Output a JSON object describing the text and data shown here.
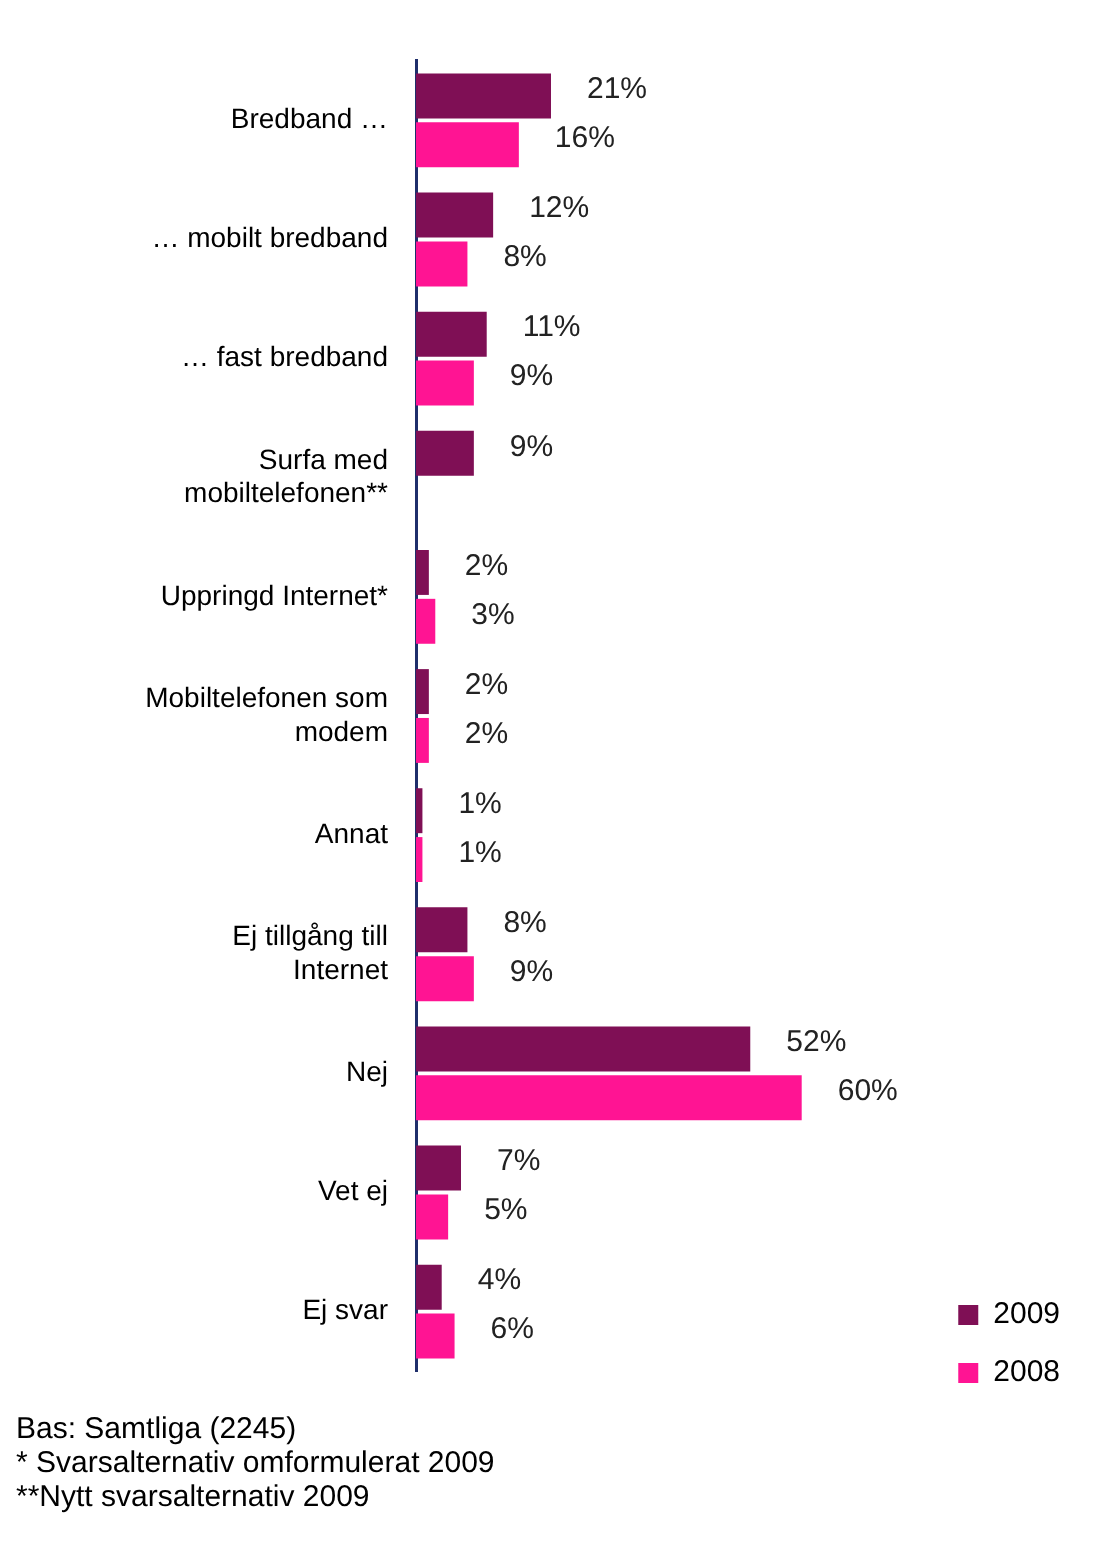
{
  "chart_data": {
    "type": "bar",
    "orientation": "horizontal",
    "data_labels": false,
    "legend": "bottom right",
    "grid": false,
    "categories": [
      "Bredband …",
      "… mobilt bredband",
      "… fast bredband",
      "Surfa med mobiltelefonen**",
      "Uppringd Internet*",
      "Mobiltelefonen som modem",
      "Annat",
      "Ej tillgång till Internet",
      "Nej",
      "Vet ej",
      "Ej svar"
    ],
    "series": [
      {
        "name": "2009",
        "color": "#7f0f55",
        "values": [
          21,
          12,
          11,
          9,
          2,
          2,
          1,
          8,
          52,
          7,
          4
        ],
        "value_labels": [
          "21%",
          "12%",
          "11%",
          "9%",
          "2%",
          "2%",
          "1%",
          "8%",
          "52%",
          "7%",
          "4%"
        ]
      },
      {
        "name": "2008",
        "color": "#ff1493",
        "values": [
          16,
          8,
          9,
          null,
          3,
          2,
          1,
          9,
          60,
          5,
          6
        ],
        "value_labels": [
          "16%",
          "8%",
          "9%",
          null,
          "3%",
          "2%",
          "1%",
          "9%",
          "60%",
          "5%",
          "6%"
        ]
      }
    ],
    "annotations": [
      "Bas: Samtliga (2245)",
      "* Svarsalternativ omformulerat 2009",
      "**Nytt svarsalternativ 2009"
    ]
  }
}
